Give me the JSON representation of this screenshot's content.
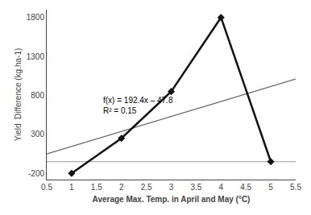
{
  "chart_data": {
    "type": "line",
    "xlabel": "Average Max. Temp. in April and May (°C)",
    "ylabel": "Yield  Difference (kg.ha-1)",
    "xlim": [
      0.5,
      5.5
    ],
    "ylim": [
      -280,
      1900
    ],
    "xticks": [
      0.5,
      1,
      1.5,
      2,
      2.5,
      3,
      3.5,
      4,
      4.5,
      5,
      5.5
    ],
    "yticks": [
      -200,
      300,
      800,
      1300,
      1800
    ],
    "grid": false,
    "series": [
      {
        "type": "line",
        "x": [
          1.0,
          2.0,
          3.0,
          4.0,
          5.0
        ],
        "values": [
          -200,
          250,
          850,
          1800,
          -50
        ],
        "color": "#111111",
        "marker": "diamond",
        "line_style": "solid"
      },
      {
        "type": "line",
        "x": [
          0.5,
          5.5
        ],
        "values": [
          48.4,
          1010.4
        ],
        "color": "#666666",
        "line_style": "solid"
      },
      {
        "type": "line",
        "x": [
          0.5,
          5.5
        ],
        "values": [
          -50,
          -50
        ],
        "color": "#999999",
        "line_style": "solid"
      }
    ],
    "annotations": [
      {
        "x": 1.6,
        "y": 820,
        "text": "f(x) = 192.4x – 47.8\nR² = 0.15"
      }
    ]
  }
}
